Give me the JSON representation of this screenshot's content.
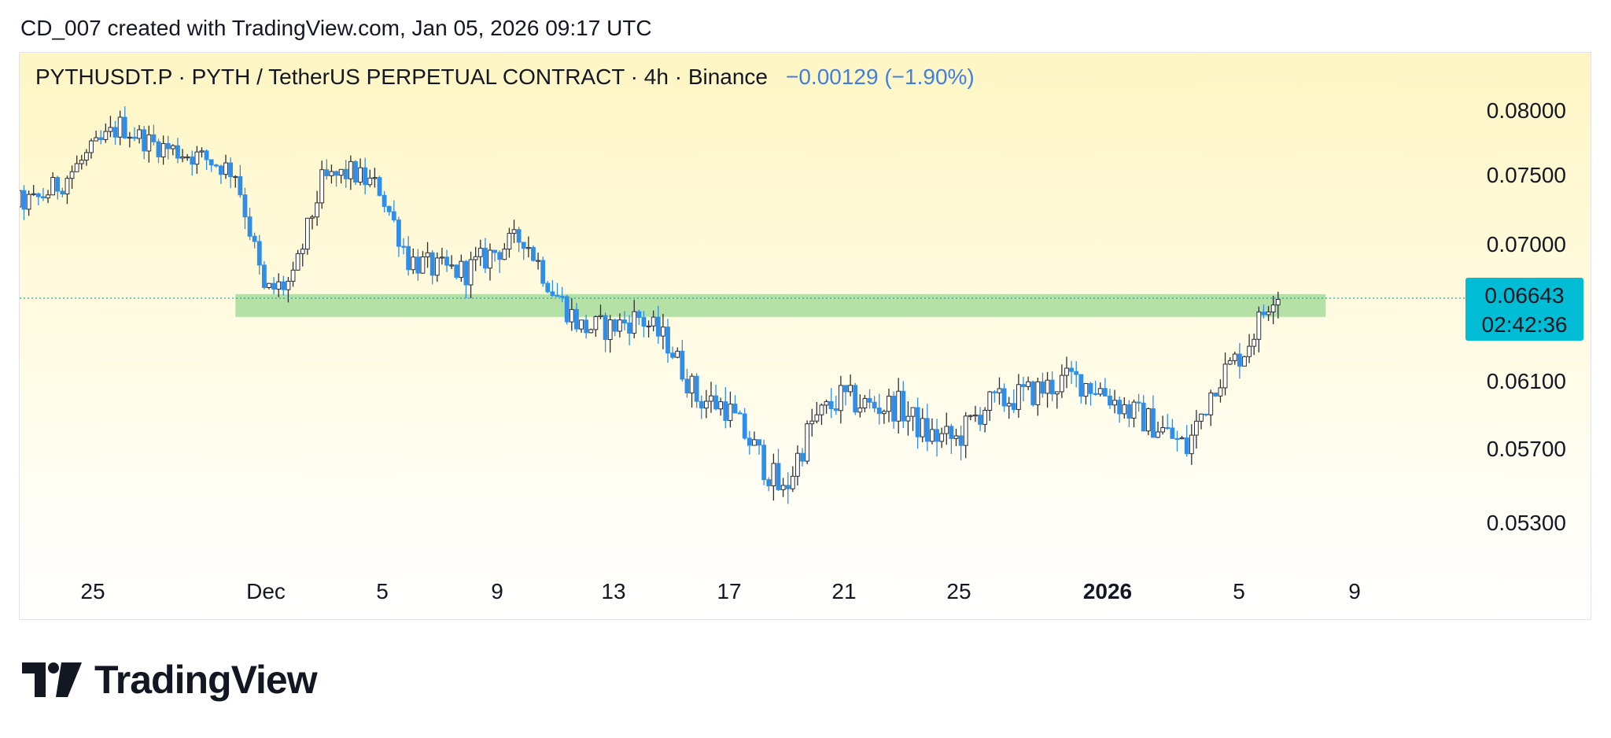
{
  "header": {
    "text": "CD_007 created with TradingView.com, Jan 05, 2026 09:17 UTC"
  },
  "footer": {
    "logo_text": "TradingView"
  },
  "colors": {
    "bg_top": "#fff7c6",
    "bg_bottom": "#ffffff",
    "up_candle": "#ffffff",
    "down_candle": "#2e8ee8",
    "wick": "#2a2e39",
    "zone": "#a8dc9c",
    "price_line": "#26a69a",
    "price_badge": "#00bcd4",
    "change_text": "#3f7fe0"
  },
  "chart_data": {
    "type": "candlestick",
    "symbol": "PYTHUSDT.P",
    "title": "PYTHUSDT.P · PYTH / TetherUS PERPETUAL CONTRACT · 4h · Binance",
    "change_text": "−0.00129 (−1.90%)",
    "interval": "4h",
    "exchange": "Binance",
    "last_price": "0.06643",
    "countdown": "02:42:36",
    "y_ticks": [
      "0.08000",
      "0.07500",
      "0.07000",
      "0.06100",
      "0.05700",
      "0.05300"
    ],
    "x_ticks": [
      {
        "label": "25",
        "bold": false
      },
      {
        "label": "Dec",
        "bold": false
      },
      {
        "label": "5",
        "bold": false
      },
      {
        "label": "9",
        "bold": false
      },
      {
        "label": "13",
        "bold": false
      },
      {
        "label": "17",
        "bold": false
      },
      {
        "label": "21",
        "bold": false
      },
      {
        "label": "25",
        "bold": false
      },
      {
        "label": "2026",
        "bold": true
      },
      {
        "label": "5",
        "bold": false
      },
      {
        "label": "9",
        "bold": false
      }
    ],
    "zone": {
      "low": 0.0652,
      "high": 0.0667,
      "from": "Nov 30",
      "to": "Jan 06"
    },
    "close_path": [
      [
        "Nov 23",
        0.073
      ],
      [
        "Nov 24",
        0.0745
      ],
      [
        "Nov 25",
        0.0768
      ],
      [
        "Nov 26",
        0.0788
      ],
      [
        "Nov 27",
        0.0775
      ],
      [
        "Nov 28",
        0.0768
      ],
      [
        "Nov 29",
        0.0762
      ],
      [
        "Nov 30",
        0.0752
      ],
      [
        "Dec 01",
        0.0668
      ],
      [
        "Dec 02",
        0.0675
      ],
      [
        "Dec 03",
        0.0745
      ],
      [
        "Dec 04",
        0.0752
      ],
      [
        "Dec 05",
        0.074
      ],
      [
        "Dec 06",
        0.069
      ],
      [
        "Dec 07",
        0.0683
      ],
      [
        "Dec 08",
        0.0682
      ],
      [
        "Dec 09",
        0.0695
      ],
      [
        "Dec 10",
        0.0705
      ],
      [
        "Dec 11",
        0.067
      ],
      [
        "Dec 12",
        0.0645
      ],
      [
        "Dec 13",
        0.0645
      ],
      [
        "Dec 14",
        0.0652
      ],
      [
        "Dec 15",
        0.0635
      ],
      [
        "Dec 16",
        0.06
      ],
      [
        "Dec 17",
        0.0595
      ],
      [
        "Dec 18",
        0.057
      ],
      [
        "Dec 19",
        0.0545
      ],
      [
        "Dec 20",
        0.0585
      ],
      [
        "Dec 21",
        0.06
      ],
      [
        "Dec 22",
        0.0595
      ],
      [
        "Dec 23",
        0.0595
      ],
      [
        "Dec 24",
        0.0578
      ],
      [
        "Dec 25",
        0.0575
      ],
      [
        "Dec 26",
        0.0595
      ],
      [
        "Dec 27",
        0.06
      ],
      [
        "Dec 28",
        0.0605
      ],
      [
        "Dec 29",
        0.0612
      ],
      [
        "Dec 30",
        0.0605
      ],
      [
        "Dec 31",
        0.0592
      ],
      [
        "Jan 01",
        0.0583
      ],
      [
        "Jan 02",
        0.057
      ],
      [
        "Jan 03",
        0.061
      ],
      [
        "Jan 04",
        0.063
      ],
      [
        "Jan 05",
        0.0668
      ]
    ]
  }
}
